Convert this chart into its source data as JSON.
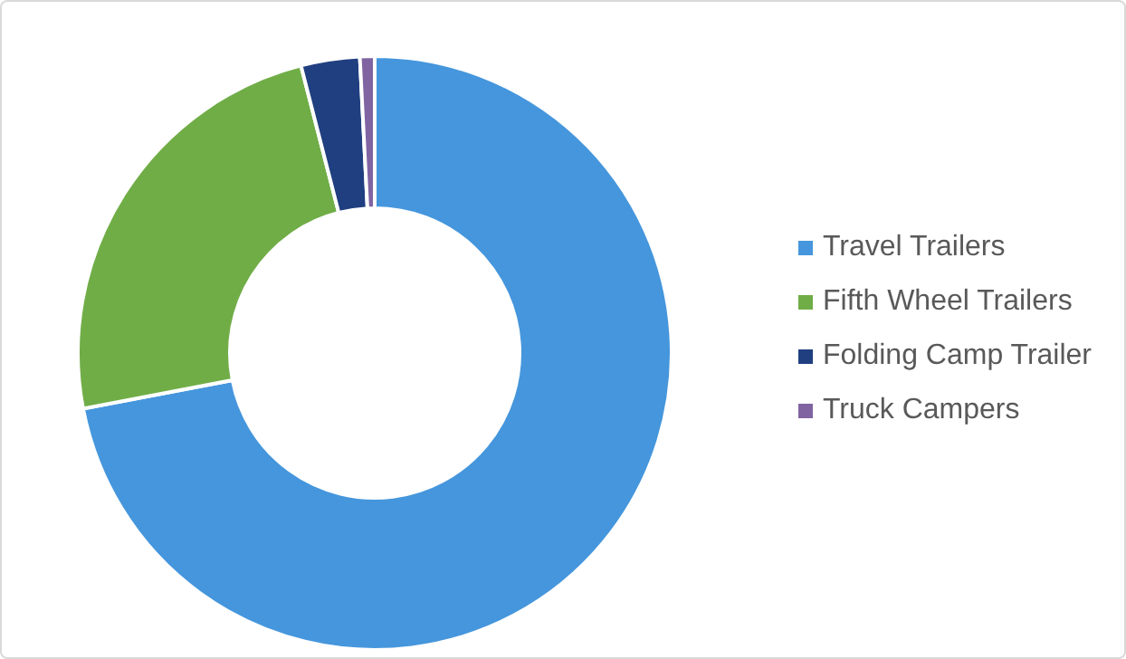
{
  "chart_data": {
    "type": "donut",
    "categories": [
      "Travel Trailers",
      "Fifth Wheel Trailers",
      "Folding Camp Trailer",
      "Truck Campers"
    ],
    "values": [
      72,
      24,
      3.2,
      0.8
    ],
    "colors": [
      "#4596dc",
      "#70ad47",
      "#203f80",
      "#8064a2"
    ],
    "legend": "right"
  }
}
